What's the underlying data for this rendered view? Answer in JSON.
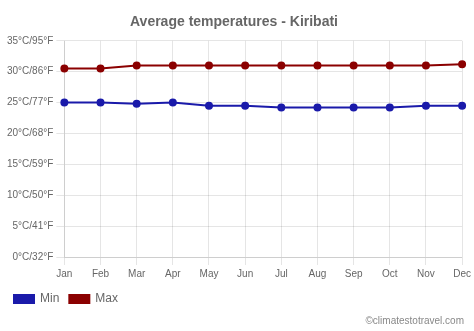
{
  "chart_data": {
    "type": "line",
    "title": "Average temperatures - Kiribati",
    "categories": [
      "Jan",
      "Feb",
      "Mar",
      "Apr",
      "May",
      "Jun",
      "Jul",
      "Aug",
      "Sep",
      "Oct",
      "Nov",
      "Dec"
    ],
    "series": [
      {
        "name": "Min",
        "color": "#1a1aaa",
        "marker": "circle",
        "values": [
          25.0,
          25.0,
          24.8,
          25.0,
          24.5,
          24.5,
          24.2,
          24.2,
          24.2,
          24.2,
          24.5,
          24.5
        ]
      },
      {
        "name": "Max",
        "color": "#8b0000",
        "marker": "circle",
        "values": [
          30.5,
          30.5,
          31.0,
          31.0,
          31.0,
          31.0,
          31.0,
          31.0,
          31.0,
          31.0,
          31.0,
          31.2
        ]
      }
    ],
    "ylim": [
      0,
      35
    ],
    "yticks": [
      {
        "value": 0,
        "label": "0°C/32°F"
      },
      {
        "value": 5,
        "label": "5°C/41°F"
      },
      {
        "value": 10,
        "label": "10°C/50°F"
      },
      {
        "value": 15,
        "label": "15°C/59°F"
      },
      {
        "value": 20,
        "label": "20°C/68°F"
      },
      {
        "value": 25,
        "label": "25°C/77°F"
      },
      {
        "value": 30,
        "label": "30°C/86°F"
      },
      {
        "value": 35,
        "label": "35°C/95°F"
      }
    ],
    "grid": true,
    "legend": "bottom",
    "annotations": [
      "©climatestotravel.com"
    ]
  }
}
